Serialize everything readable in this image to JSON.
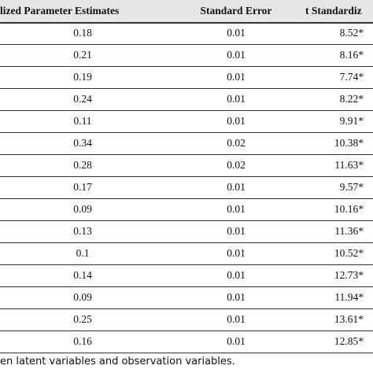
{
  "table": {
    "header": [
      "lized Parameter Estimates",
      "Standard Error",
      "t Standardiz"
    ],
    "rows": [
      [
        "0.18",
        "0.01",
        "8.52*"
      ],
      [
        "0.21",
        "0.01",
        "8.16*"
      ],
      [
        "0.19",
        "0.01",
        "7.74*"
      ],
      [
        "0.24",
        "0.01",
        "8.22*"
      ],
      [
        "0.11",
        "0.01",
        "9.91*"
      ],
      [
        "0.34",
        "0.02",
        "10.38*"
      ],
      [
        "0.28",
        "0.02",
        "11.63*"
      ],
      [
        "0.17",
        "0.01",
        "9.57*"
      ],
      [
        "0.09",
        "0.01",
        "10.16*"
      ],
      [
        "0.13",
        "0.01",
        "11.36*"
      ],
      [
        "0.1",
        "0.01",
        "10.52*"
      ],
      [
        "0.14",
        "0.01",
        "12.73*"
      ],
      [
        "0.09",
        "0.01",
        "11.94*"
      ],
      [
        "0.25",
        "0.01",
        "13.61*"
      ],
      [
        "0.16",
        "0.01",
        "12.85*"
      ]
    ]
  },
  "footnote": "en latent variables and observation variables."
}
